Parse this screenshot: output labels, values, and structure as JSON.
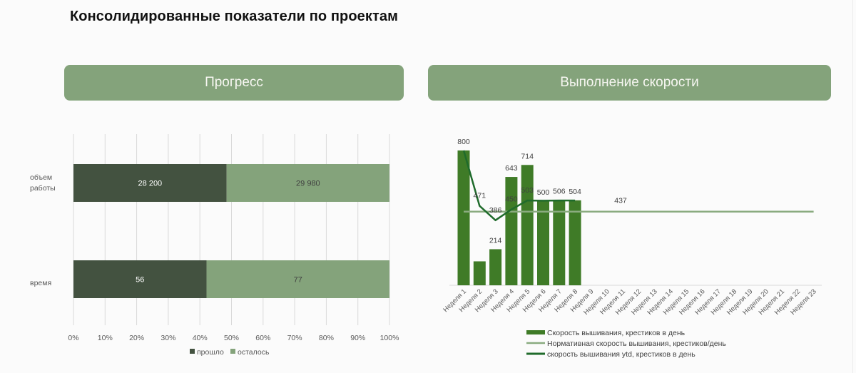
{
  "page": {
    "title": "Консолидированные показатели по проектам"
  },
  "panels": [
    {
      "header": "Прогресс"
    },
    {
      "header": "Выполнение скорости"
    }
  ],
  "colors": {
    "header_bg": "#84a37b",
    "elapsed": "#435240",
    "remaining": "#84a37b",
    "speed_bars": "#3f7b27",
    "norm_line": "#8aab7f",
    "ytd_line": "#1f6b2b",
    "grid": "#d9d9d9",
    "axis_text": "#595959"
  },
  "chart_data": [
    {
      "type": "bar",
      "orientation": "horizontal",
      "stacked": "percent",
      "title": "Прогресс",
      "categories": [
        "объем работы",
        "время"
      ],
      "series": [
        {
          "name": "прошло",
          "values": [
            28200,
            56
          ],
          "labels": [
            "28 200",
            "56"
          ],
          "color": "#435240",
          "label_color": "#ffffff"
        },
        {
          "name": "осталось",
          "values": [
            29980,
            77
          ],
          "labels": [
            "29 980",
            "77"
          ],
          "color": "#84a37b",
          "label_color": "#404040"
        }
      ],
      "xticks": [
        "0%",
        "10%",
        "20%",
        "30%",
        "40%",
        "50%",
        "60%",
        "70%",
        "80%",
        "90%",
        "100%"
      ],
      "xlim": [
        0,
        100
      ],
      "grid": true,
      "legend_position": "bottom"
    },
    {
      "type": "bar",
      "combo": "bar+line",
      "title": "Выполнение скорости",
      "categories": [
        "Неделя 1",
        "Неделя 2",
        "Неделя 3",
        "Неделя 4",
        "Неделя 5",
        "Неделя 6",
        "Неделя 7",
        "Неделя 8",
        "Неделя 9",
        "Неделя 10",
        "Неделя 11",
        "Неделя 12",
        "Неделя 13",
        "Неделя 14",
        "Неделя 15",
        "Неделя 16",
        "Неделя 17",
        "Неделя 18",
        "Неделя 19",
        "Неделя 20",
        "Неделя 21",
        "Неделя 22",
        "Неделя 23"
      ],
      "series": [
        {
          "name": "Скорость вышивания, крестиков в день",
          "kind": "bar",
          "color": "#3f7b27",
          "values": [
            800,
            142,
            214,
            643,
            714,
            500,
            506,
            504
          ],
          "labels": [
            "800",
            null,
            "214",
            "643",
            "714",
            "500",
            "506",
            "504"
          ]
        },
        {
          "name": "Нормативная скорость вышивания, крестиков/день",
          "kind": "line",
          "color": "#8aab7f",
          "values": [
            437,
            437,
            437,
            437,
            437,
            437,
            437,
            437,
            437,
            437,
            437,
            437,
            437,
            437,
            437,
            437,
            437,
            437,
            437,
            437,
            437,
            437,
            437
          ],
          "label_index": 10,
          "label": "437"
        },
        {
          "name": "скорость вышивания ytd, крестиков в день",
          "kind": "line",
          "color": "#1f6b2b",
          "values": [
            800,
            471,
            386,
            450,
            503,
            502,
            503,
            503
          ],
          "labels": [
            null,
            "471",
            "386",
            "450",
            "503",
            null,
            null,
            null
          ]
        }
      ],
      "ylim": [
        0,
        850
      ],
      "grid": false,
      "legend_position": "bottom"
    }
  ]
}
